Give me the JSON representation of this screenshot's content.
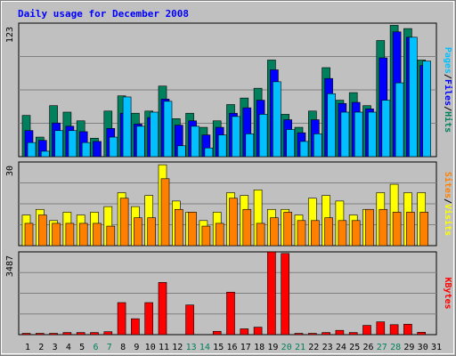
{
  "chart_data": [
    {
      "type": "bar",
      "title": "Daily usage for December 2008",
      "categories": [
        "1",
        "2",
        "3",
        "4",
        "5",
        "6",
        "7",
        "8",
        "9",
        "10",
        "11",
        "12",
        "13",
        "14",
        "15",
        "16",
        "17",
        "18",
        "19",
        "20",
        "21",
        "22",
        "23",
        "24",
        "25",
        "26",
        "27",
        "28",
        "29",
        "30",
        "31"
      ],
      "weekend_days": [
        "6",
        "7",
        "13",
        "14",
        "20",
        "21",
        "27",
        "28"
      ],
      "ylabel_parts": [
        "Pages",
        "Files",
        "Hits"
      ],
      "y_max_label": "123",
      "ylim": [
        0,
        123
      ],
      "series": [
        {
          "name": "Hits",
          "color": "#00805c",
          "values": [
            38,
            18,
            47,
            41,
            33,
            17,
            42,
            56,
            40,
            42,
            65,
            35,
            40,
            27,
            33,
            48,
            54,
            63,
            89,
            39,
            27,
            42,
            82,
            52,
            59,
            47,
            107,
            121,
            118,
            89,
            0
          ]
        },
        {
          "name": "Files",
          "color": "#0000ff",
          "values": [
            24,
            15,
            31,
            28,
            23,
            14,
            26,
            40,
            30,
            36,
            53,
            29,
            33,
            20,
            27,
            40,
            45,
            52,
            80,
            34,
            22,
            34,
            72,
            49,
            50,
            44,
            91,
            115,
            110,
            84,
            0
          ]
        },
        {
          "name": "Pages",
          "color": "#00c0ff",
          "values": [
            13,
            5,
            24,
            24,
            13,
            0,
            18,
            55,
            28,
            41,
            51,
            10,
            28,
            8,
            20,
            37,
            21,
            39,
            69,
            25,
            14,
            21,
            58,
            41,
            41,
            41,
            52,
            68,
            110,
            88,
            0
          ]
        }
      ]
    },
    {
      "type": "bar",
      "ylabel_parts": [
        "Sites",
        "Visits"
      ],
      "y_max_label": "30",
      "ylim": [
        0,
        30
      ],
      "series": [
        {
          "name": "Visits",
          "color": "#ffff00",
          "values": [
            11,
            13,
            9,
            12,
            11,
            12,
            14,
            19,
            14,
            18,
            29,
            16,
            12,
            9,
            12,
            19,
            18,
            20,
            13,
            13,
            11,
            17,
            18,
            16,
            11,
            13,
            19,
            22,
            19,
            19,
            0
          ]
        },
        {
          "name": "Sites",
          "color": "#ff8000",
          "values": [
            8,
            11,
            8,
            8,
            8,
            8,
            7,
            17,
            10,
            10,
            24,
            13,
            12,
            7,
            8,
            17,
            13,
            8,
            10,
            12,
            9,
            9,
            10,
            9,
            9,
            13,
            13,
            12,
            12,
            12,
            0
          ]
        }
      ]
    },
    {
      "type": "bar",
      "ylabel_parts": [
        "KBytes"
      ],
      "y_max_label": "3487",
      "ylim": [
        0,
        3487
      ],
      "series": [
        {
          "name": "KBytes",
          "color": "#ff0000",
          "values": [
            55,
            55,
            55,
            90,
            90,
            90,
            125,
            1350,
            670,
            1350,
            2200,
            0,
            1250,
            0,
            140,
            1790,
            245,
            315,
            3487,
            3420,
            55,
            55,
            90,
            180,
            90,
            390,
            540,
            420,
            440,
            100,
            0
          ]
        }
      ]
    }
  ],
  "colors": {
    "background": "#c0c0c0",
    "frame": "#ffffff",
    "title": "#0000ff",
    "day_weekday": "#000000",
    "day_weekend": "#00805c",
    "gridline": "#808080",
    "separator": "#000000"
  }
}
